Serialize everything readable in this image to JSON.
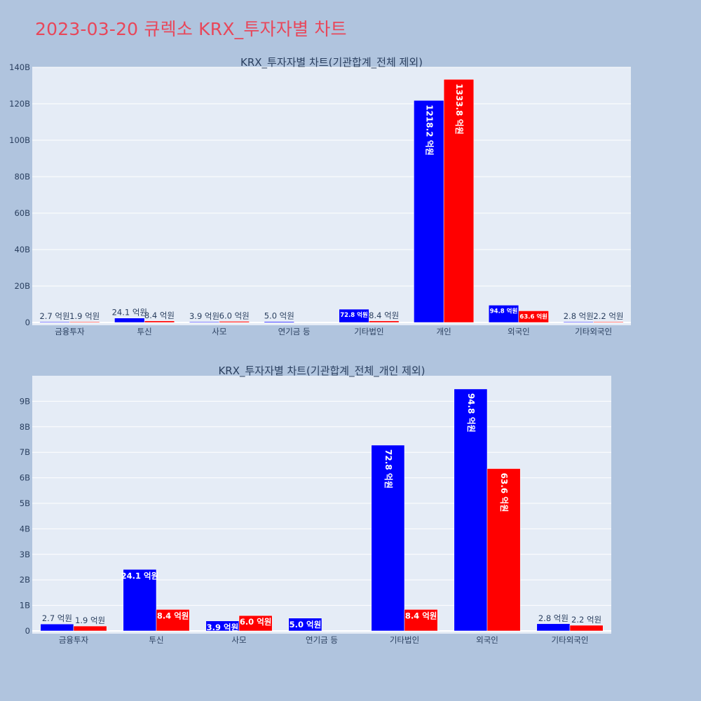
{
  "page_title": "2023-03-20 큐렉소 KRX_투자자별 차트",
  "colors": {
    "buy": "#0000ff",
    "sell": "#ff0000",
    "title": "#e8475a",
    "plot_bg": "#e5ecf6",
    "page_bg": "#b0c4de"
  },
  "chart_data": [
    {
      "type": "bar",
      "title": "KRX_투자자별 차트(기관합계_전체 제외)",
      "categories": [
        "금융투자",
        "투신",
        "사모",
        "연기금 등",
        "기타법인",
        "개인",
        "외국인",
        "기타외국인"
      ],
      "series": [
        {
          "values": [
            270000000,
            2410000000,
            390000000,
            500000000,
            7280000000,
            121820000000,
            9480000000,
            280000000
          ],
          "labels": [
            "2.7 억원",
            "24.1 억원",
            "3.9 억원",
            "5.0 억원",
            "72.8 억원",
            "1218.2 억원",
            "94.8 억원",
            "2.8 억원"
          ]
        },
        {
          "values": [
            190000000,
            840000000,
            600000000,
            null,
            840000000,
            133380000000,
            6360000000,
            220000000
          ],
          "labels": [
            "1.9 억원",
            "8.4 억원",
            "6.0 억원",
            "",
            "8.4 억원",
            "1333.8 억원",
            "63.6 억원",
            "2.2 억원"
          ]
        }
      ],
      "ylim": [
        0,
        140000000000
      ],
      "yticks": [
        0,
        20000000000,
        40000000000,
        60000000000,
        80000000000,
        100000000000,
        120000000000,
        140000000000
      ],
      "ytick_labels": [
        "0",
        "20B",
        "40B",
        "60B",
        "80B",
        "100B",
        "120B",
        "140B"
      ],
      "grid": true
    },
    {
      "type": "bar",
      "title": "KRX_투자자별 차트(기관합계_전체_개인 제외)",
      "categories": [
        "금융투자",
        "투신",
        "사모",
        "연기금 등",
        "기타법인",
        "외국인",
        "기타외국인"
      ],
      "series": [
        {
          "values": [
            270000000,
            2410000000,
            390000000,
            500000000,
            7280000000,
            9480000000,
            280000000
          ],
          "labels": [
            "2.7 억원",
            "24.1 억원",
            "3.9 억원",
            "5.0 억원",
            "72.8 억원",
            "94.8 억원",
            "2.8 억원"
          ]
        },
        {
          "values": [
            190000000,
            840000000,
            600000000,
            null,
            840000000,
            6360000000,
            220000000
          ],
          "labels": [
            "1.9 억원",
            "8.4 억원",
            "6.0 억원",
            "",
            "8.4 억원",
            "63.6 억원",
            "2.2 억원"
          ]
        }
      ],
      "ylim": [
        0,
        10000000000
      ],
      "yticks": [
        0,
        1000000000,
        2000000000,
        3000000000,
        4000000000,
        5000000000,
        6000000000,
        7000000000,
        8000000000,
        9000000000
      ],
      "ytick_labels": [
        "0",
        "1B",
        "2B",
        "3B",
        "4B",
        "5B",
        "6B",
        "7B",
        "8B",
        "9B"
      ],
      "grid": true
    }
  ]
}
